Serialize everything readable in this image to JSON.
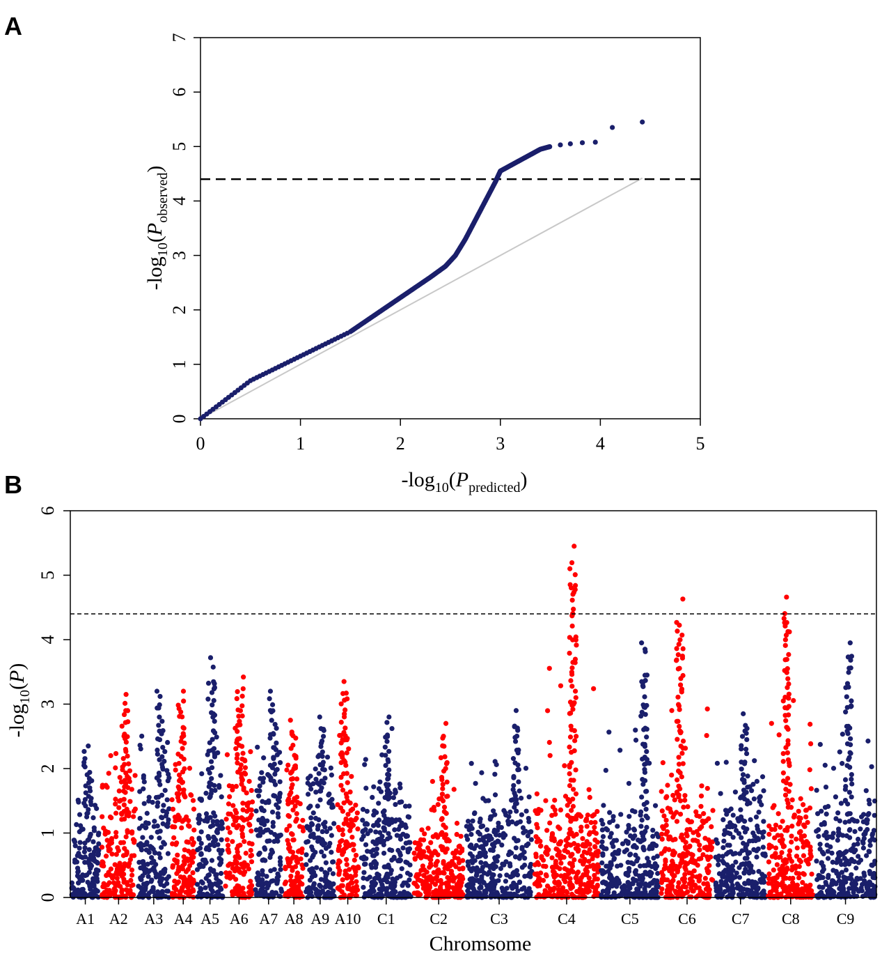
{
  "figure": {
    "panel_a_label": "A",
    "panel_b_label": "B"
  },
  "colors": {
    "navy": "#1a1f6b",
    "red": "#ff0000",
    "diagonal": "#c8c8c8",
    "threshold": "#000000"
  },
  "chart_data": [
    {
      "type": "scatter",
      "panel": "A",
      "title": "",
      "xlabel": {
        "prefix": "-log",
        "sub": "10",
        "open": "(",
        "var": "P",
        "varsub": "predicted",
        "close": ")"
      },
      "ylabel": {
        "prefix": "-log",
        "sub": "10",
        "open": "(",
        "var": "P",
        "varsub": "observed",
        "close": ")"
      },
      "xlim": [
        0,
        5
      ],
      "ylim": [
        0,
        7
      ],
      "xticks": [
        "0",
        "1",
        "2",
        "3",
        "4",
        "5"
      ],
      "yticks": [
        "0",
        "1",
        "2",
        "3",
        "4",
        "5",
        "6",
        "7"
      ],
      "threshold": 4.4,
      "diagonal": [
        [
          0,
          0
        ],
        [
          4.42,
          4.42
        ]
      ],
      "curve": [
        [
          0,
          0
        ],
        [
          0.5,
          0.7
        ],
        [
          1.0,
          1.15
        ],
        [
          1.5,
          1.6
        ],
        [
          1.7,
          1.85
        ],
        [
          1.9,
          2.1
        ],
        [
          2.1,
          2.35
        ],
        [
          2.3,
          2.6
        ],
        [
          2.45,
          2.8
        ],
        [
          2.55,
          3.0
        ],
        [
          2.65,
          3.3
        ],
        [
          2.75,
          3.65
        ],
        [
          2.85,
          4.0
        ],
        [
          2.95,
          4.35
        ],
        [
          3.0,
          4.55
        ],
        [
          3.1,
          4.65
        ],
        [
          3.2,
          4.75
        ],
        [
          3.3,
          4.85
        ],
        [
          3.4,
          4.95
        ],
        [
          3.5,
          5.0
        ]
      ],
      "outliers": [
        [
          3.6,
          5.03
        ],
        [
          3.7,
          5.05
        ],
        [
          3.82,
          5.07
        ],
        [
          3.95,
          5.08
        ],
        [
          4.12,
          5.35
        ],
        [
          4.42,
          5.45
        ]
      ]
    },
    {
      "type": "scatter",
      "panel": "B",
      "title": "",
      "xlabel": "Chromsome",
      "ylabel": {
        "prefix": "-log",
        "sub": "10",
        "open": "(",
        "var": "P",
        "close": ")"
      },
      "ylim": [
        0,
        6
      ],
      "yticks": [
        "0",
        "1",
        "2",
        "3",
        "4",
        "5",
        "6"
      ],
      "threshold": 4.4,
      "chromosomes": [
        {
          "label": "A1",
          "start": 0.0,
          "end": 3.2,
          "color": "navy",
          "base": 1.25,
          "peak": 2.35
        },
        {
          "label": "A2",
          "start": 3.2,
          "end": 7.1,
          "color": "red",
          "base": 1.65,
          "peak": 3.15
        },
        {
          "label": "A3",
          "start": 7.1,
          "end": 10.7,
          "color": "navy",
          "base": 1.75,
          "peak": 3.2
        },
        {
          "label": "A4",
          "start": 10.7,
          "end": 13.4,
          "color": "red",
          "base": 1.5,
          "peak": 3.2
        },
        {
          "label": "A5",
          "start": 13.4,
          "end": 16.4,
          "color": "navy",
          "base": 1.55,
          "peak": 3.72
        },
        {
          "label": "A6",
          "start": 16.4,
          "end": 19.6,
          "color": "red",
          "base": 1.7,
          "peak": 3.42
        },
        {
          "label": "A7",
          "start": 19.6,
          "end": 22.7,
          "color": "navy",
          "base": 1.75,
          "peak": 3.2
        },
        {
          "label": "A8",
          "start": 22.7,
          "end": 25.0,
          "color": "red",
          "base": 1.3,
          "peak": 2.75
        },
        {
          "label": "A9",
          "start": 25.0,
          "end": 28.3,
          "color": "navy",
          "base": 1.65,
          "peak": 2.8
        },
        {
          "label": "A10",
          "start": 28.3,
          "end": 30.9,
          "color": "red",
          "base": 1.5,
          "peak": 3.35
        },
        {
          "label": "C1",
          "start": 30.9,
          "end": 36.5,
          "color": "navy",
          "base": 1.55,
          "peak": 2.8
        },
        {
          "label": "C2",
          "start": 36.5,
          "end": 42.1,
          "color": "red",
          "base": 0.9,
          "peak": 2.7
        },
        {
          "label": "C3",
          "start": 42.1,
          "end": 49.4,
          "color": "navy",
          "base": 1.4,
          "peak": 2.9
        },
        {
          "label": "C4",
          "start": 49.4,
          "end": 56.5,
          "color": "red",
          "base": 1.35,
          "peak": 5.45
        },
        {
          "label": "C5",
          "start": 56.5,
          "end": 62.9,
          "color": "navy",
          "base": 1.2,
          "peak": 3.95
        },
        {
          "label": "C6",
          "start": 62.9,
          "end": 68.7,
          "color": "red",
          "base": 1.5,
          "peak": 4.63
        },
        {
          "label": "C7",
          "start": 68.7,
          "end": 74.3,
          "color": "navy",
          "base": 1.45,
          "peak": 2.85
        },
        {
          "label": "C8",
          "start": 74.3,
          "end": 79.4,
          "color": "red",
          "base": 1.4,
          "peak": 4.66
        },
        {
          "label": "C9",
          "start": 79.4,
          "end": 86.0,
          "color": "navy",
          "base": 1.45,
          "peak": 3.95
        }
      ]
    }
  ]
}
